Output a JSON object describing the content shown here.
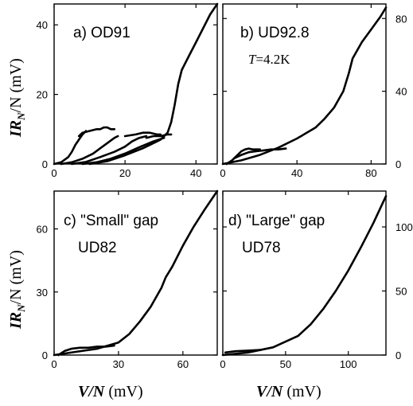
{
  "figure": {
    "ylabel_top": {
      "main": "IR",
      "sub": "N",
      "rest": "/N (mV)"
    },
    "ylabel_bottom": {
      "main": "IR",
      "sub": "N",
      "rest": "/N (mV)"
    },
    "xlabel_left": {
      "main": "V/N",
      "rest": " (mV)"
    },
    "xlabel_right": {
      "main": "V/N",
      "rest": " (mV)"
    }
  },
  "chart_data": [
    {
      "type": "line",
      "panel": "a",
      "labels": [
        "a) OD91"
      ],
      "xlim": [
        0,
        46
      ],
      "ylim": [
        0,
        46
      ],
      "xticks": [
        0,
        20,
        40
      ],
      "yticks": [
        0,
        20,
        40
      ],
      "ytick_side": "left",
      "series": [
        {
          "x": [
            0,
            2,
            4,
            5,
            6,
            7,
            8,
            9
          ],
          "y": [
            0,
            0.5,
            2,
            3.5,
            5.5,
            7,
            8.5,
            9.5
          ]
        },
        {
          "x": [
            7,
            8,
            10,
            12,
            13,
            14,
            15,
            16,
            17
          ],
          "y": [
            8,
            9,
            9.5,
            10,
            10,
            10.5,
            10.5,
            10,
            10
          ]
        },
        {
          "x": [
            2,
            5,
            8,
            11,
            13,
            15,
            17,
            18
          ],
          "y": [
            0,
            0.5,
            1.5,
            3,
            4.5,
            6,
            7.5,
            8
          ]
        },
        {
          "x": [
            5,
            9,
            13,
            17,
            20,
            22,
            24,
            26
          ],
          "y": [
            0,
            0.6,
            2,
            3.5,
            5,
            6.5,
            7.5,
            8
          ]
        },
        {
          "x": [
            8,
            12,
            16,
            20,
            24,
            28,
            31
          ],
          "y": [
            0,
            0.5,
            1.5,
            3,
            4.8,
            6.5,
            7.5
          ]
        },
        {
          "x": [
            20,
            23,
            25,
            27,
            29,
            30
          ],
          "y": [
            8,
            8.5,
            9,
            9,
            8.5,
            8.5
          ]
        },
        {
          "x": [
            26,
            28,
            30,
            32,
            33
          ],
          "y": [
            7.5,
            8,
            8,
            8.5,
            8.5
          ]
        },
        {
          "x": [
            10,
            15,
            20,
            25,
            28,
            30,
            32,
            33,
            34,
            35,
            36,
            38,
            40,
            42,
            44,
            46
          ],
          "y": [
            0,
            0.8,
            2.5,
            4.5,
            6,
            7,
            9,
            12,
            17,
            23,
            27,
            31,
            35,
            39,
            43,
            46
          ]
        }
      ]
    },
    {
      "type": "line",
      "panel": "b",
      "labels": [
        "b) UD92.8",
        "T=4.2K"
      ],
      "xlim": [
        0,
        88
      ],
      "ylim": [
        0,
        88
      ],
      "xticks": [
        0,
        40,
        80
      ],
      "yticks": [
        0,
        40,
        80
      ],
      "ytick_side": "right",
      "series": [
        {
          "x": [
            2,
            5,
            8,
            10,
            12,
            14,
            16,
            18,
            20
          ],
          "y": [
            0,
            2,
            5,
            7,
            8,
            8.5,
            8,
            8,
            8
          ]
        },
        {
          "x": [
            6,
            10,
            14,
            18,
            22,
            26,
            30,
            34
          ],
          "y": [
            3,
            5,
            6.5,
            7,
            7.5,
            8,
            8,
            8.5
          ]
        },
        {
          "x": [
            0,
            10,
            20,
            30,
            40,
            50,
            55,
            60,
            65,
            68,
            70,
            75,
            80,
            85,
            88
          ],
          "y": [
            0,
            2,
            5,
            9,
            14,
            20,
            25,
            31,
            40,
            50,
            58,
            67,
            74,
            81,
            86
          ]
        }
      ]
    },
    {
      "type": "line",
      "panel": "c",
      "labels": [
        "c) \"Small\" gap",
        "UD82"
      ],
      "xlim": [
        0,
        76
      ],
      "ylim": [
        0,
        78
      ],
      "xticks": [
        0,
        30,
        60
      ],
      "yticks": [
        0,
        30,
        60
      ],
      "ytick_side": "left",
      "series": [
        {
          "x": [
            2,
            5,
            8,
            12,
            16,
            20,
            24,
            28
          ],
          "y": [
            0,
            2,
            3,
            3.5,
            3.5,
            4,
            4,
            4.5
          ]
        },
        {
          "x": [
            0,
            10,
            20,
            30,
            35,
            40,
            45,
            50,
            52,
            55,
            60,
            65,
            70,
            76
          ],
          "y": [
            0,
            1.5,
            3,
            6,
            10,
            16,
            23,
            32,
            37,
            42,
            52,
            61,
            69,
            78
          ]
        }
      ]
    },
    {
      "type": "line",
      "panel": "d",
      "labels": [
        "d) \"Large\" gap",
        "UD78"
      ],
      "xlim": [
        0,
        130
      ],
      "ylim": [
        0,
        128
      ],
      "xticks": [
        0,
        50,
        100
      ],
      "yticks": [
        0,
        50,
        100
      ],
      "ytick_side": "right",
      "series": [
        {
          "x": [
            2,
            10,
            20,
            30
          ],
          "y": [
            2,
            3,
            3.5,
            4
          ]
        },
        {
          "x": [
            0,
            20,
            40,
            60,
            70,
            80,
            90,
            100,
            110,
            120,
            130
          ],
          "y": [
            0,
            2,
            6,
            15,
            24,
            36,
            50,
            66,
            84,
            103,
            124
          ]
        }
      ]
    }
  ]
}
